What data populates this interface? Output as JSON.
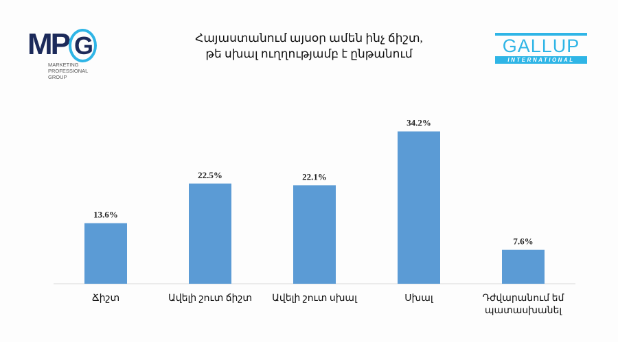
{
  "title": "Հայաստանում այսօր ամեն ինչ ճիշտ, թե սխալ ուղղությամբ է ընթանում",
  "title_lines": [
    "Հայաստանում այսօր ամեն ինչ ճիշտ,",
    "թե սխալ ուղղությամբ է ընթանում"
  ],
  "logos": {
    "mpg": {
      "letters": "MPG",
      "subtitle_lines": [
        "MARKETING",
        "PROFESSIONAL",
        "GROUP"
      ]
    },
    "gallup": {
      "word": "GALLUP",
      "sub": "INTERNATIONAL"
    }
  },
  "colors": {
    "bar": "#5b9bd5",
    "axis": "#d9d9d9",
    "brand_blue": "#2fb5e6",
    "brand_navy": "#1c2a5a"
  },
  "chart_data": {
    "type": "bar",
    "title": "Հայաստանում այսօր ամեն ինչ ճիշտ, թե սխալ ուղղությամբ է ընթանում",
    "categories": [
      "Ճիշտ",
      "Ավելի շուտ ճիշտ",
      "Ավելի շուտ սխալ",
      "Սխալ",
      "Դժվարանում եմ պատասխանել"
    ],
    "values": [
      13.6,
      22.5,
      22.1,
      34.2,
      7.6
    ],
    "data_labels": [
      "13.6%",
      "22.5%",
      "22.1%",
      "34.2%",
      "7.6%"
    ],
    "ylim": [
      0,
      38
    ],
    "grid": false,
    "legend": "none"
  }
}
